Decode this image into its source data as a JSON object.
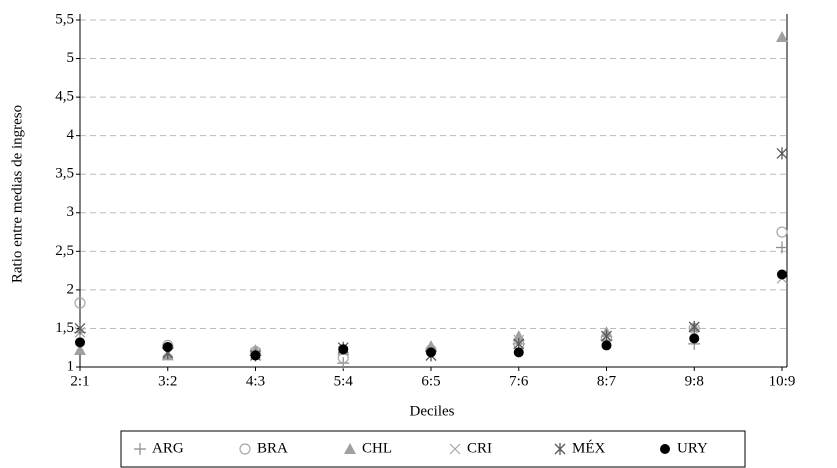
{
  "chart_data": {
    "type": "scatter",
    "y_label": "Ratio entre medias de ingreso",
    "x_label": "Deciles",
    "categories": [
      "2:1",
      "3:2",
      "4:3",
      "5:4",
      "6:5",
      "7:6",
      "8:7",
      "9:8",
      "10:9"
    ],
    "ylim": [
      1,
      5.5
    ],
    "yticks": [
      1,
      {
        "value": 1.5,
        "label": "1,5"
      },
      2,
      {
        "value": 2.5,
        "label": "2,5"
      },
      3,
      {
        "value": 3.5,
        "label": "3,5"
      },
      4,
      {
        "value": 4.5,
        "label": "4,5"
      },
      5,
      {
        "value": 5.5,
        "label": "5,5"
      }
    ],
    "grid": true,
    "legend": "bottom",
    "series": [
      {
        "name": "ARG",
        "color": "#8c8c8c",
        "marker": "plus",
        "values": [
          1.45,
          1.25,
          1.15,
          1.05,
          1.2,
          1.3,
          1.35,
          1.3,
          2.55
        ]
      },
      {
        "name": "BRA",
        "color": "#a6a6a6",
        "marker": "circle",
        "values": [
          1.83,
          1.28,
          1.2,
          1.12,
          1.22,
          1.3,
          1.38,
          1.5,
          2.75
        ]
      },
      {
        "name": "CHL",
        "color": "#a0a0a0",
        "marker": "triangle",
        "values": [
          1.22,
          1.15,
          1.22,
          1.22,
          1.27,
          1.4,
          1.45,
          1.52,
          5.28
        ]
      },
      {
        "name": "CRI",
        "color": "#a6a6a6",
        "marker": "x",
        "values": [
          1.45,
          1.2,
          1.18,
          1.2,
          1.15,
          1.35,
          1.4,
          1.52,
          2.15
        ]
      },
      {
        "name": "MÉX",
        "color": "#595959",
        "marker": "star",
        "values": [
          1.5,
          1.18,
          1.15,
          1.25,
          1.15,
          1.3,
          1.4,
          1.52,
          3.77
        ]
      },
      {
        "name": "URY",
        "color": "#000000",
        "marker": "dot",
        "values": [
          1.32,
          1.26,
          1.15,
          1.23,
          1.19,
          1.19,
          1.28,
          1.37,
          2.2
        ]
      }
    ]
  }
}
